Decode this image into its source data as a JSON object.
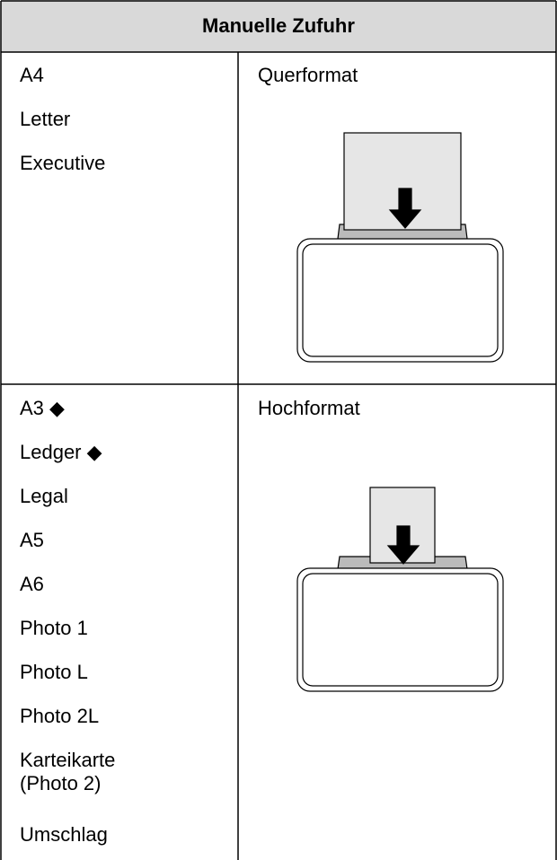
{
  "header": {
    "title": "Manuelle Zufuhr"
  },
  "rows": [
    {
      "sizes": [
        "A4",
        "Letter",
        "Executive"
      ],
      "orientation": "Querformat"
    },
    {
      "sizes": [
        "A3 ◆",
        "Ledger ◆",
        "Legal",
        "A5",
        "A6",
        "Photo 1",
        "Photo L",
        "Photo 2L",
        "Karteikarte\n(Photo 2)",
        "Umschlag"
      ],
      "orientation": "Hochformat"
    }
  ]
}
